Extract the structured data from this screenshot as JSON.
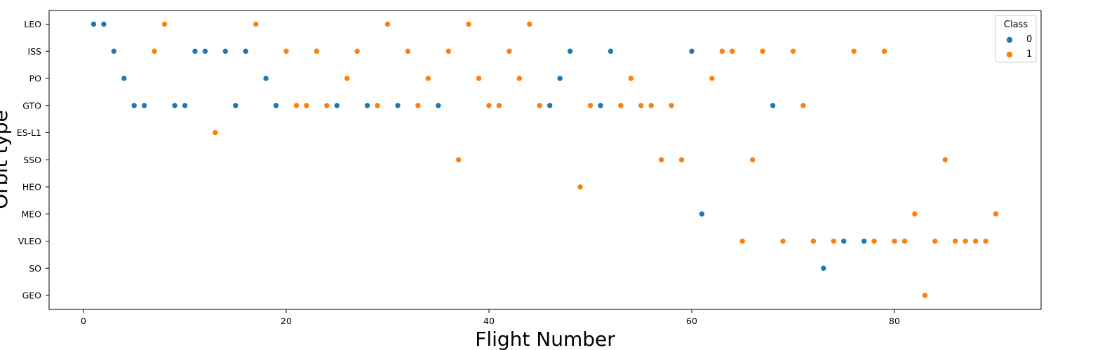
{
  "chart_data": {
    "type": "scatter",
    "xlabel": "Flight Number",
    "ylabel": "Orbit type",
    "xlim": [
      -3.5,
      94.5
    ],
    "xticks": [
      0,
      20,
      40,
      60,
      80
    ],
    "categories": [
      "LEO",
      "ISS",
      "PO",
      "GTO",
      "ES-L1",
      "SSO",
      "HEO",
      "MEO",
      "VLEO",
      "SO",
      "GEO"
    ],
    "legend": {
      "title": "Class",
      "position": "top-right"
    },
    "grid": false,
    "series": [
      {
        "name": "0",
        "color": "#1f77b4",
        "points": [
          [
            1,
            "LEO"
          ],
          [
            2,
            "LEO"
          ],
          [
            3,
            "ISS"
          ],
          [
            11,
            "ISS"
          ],
          [
            12,
            "ISS"
          ],
          [
            14,
            "ISS"
          ],
          [
            16,
            "ISS"
          ],
          [
            48,
            "ISS"
          ],
          [
            52,
            "ISS"
          ],
          [
            60,
            "ISS"
          ],
          [
            4,
            "PO"
          ],
          [
            18,
            "PO"
          ],
          [
            47,
            "PO"
          ],
          [
            5,
            "GTO"
          ],
          [
            6,
            "GTO"
          ],
          [
            9,
            "GTO"
          ],
          [
            10,
            "GTO"
          ],
          [
            15,
            "GTO"
          ],
          [
            19,
            "GTO"
          ],
          [
            25,
            "GTO"
          ],
          [
            28,
            "GTO"
          ],
          [
            31,
            "GTO"
          ],
          [
            35,
            "GTO"
          ],
          [
            46,
            "GTO"
          ],
          [
            51,
            "GTO"
          ],
          [
            68,
            "GTO"
          ],
          [
            61,
            "MEO"
          ],
          [
            75,
            "VLEO"
          ],
          [
            77,
            "VLEO"
          ],
          [
            73,
            "SO"
          ]
        ]
      },
      {
        "name": "1",
        "color": "#ff7f0e",
        "points": [
          [
            8,
            "LEO"
          ],
          [
            17,
            "LEO"
          ],
          [
            30,
            "LEO"
          ],
          [
            38,
            "LEO"
          ],
          [
            44,
            "LEO"
          ],
          [
            7,
            "ISS"
          ],
          [
            20,
            "ISS"
          ],
          [
            23,
            "ISS"
          ],
          [
            27,
            "ISS"
          ],
          [
            32,
            "ISS"
          ],
          [
            36,
            "ISS"
          ],
          [
            42,
            "ISS"
          ],
          [
            63,
            "ISS"
          ],
          [
            64,
            "ISS"
          ],
          [
            67,
            "ISS"
          ],
          [
            70,
            "ISS"
          ],
          [
            76,
            "ISS"
          ],
          [
            79,
            "ISS"
          ],
          [
            26,
            "PO"
          ],
          [
            34,
            "PO"
          ],
          [
            39,
            "PO"
          ],
          [
            43,
            "PO"
          ],
          [
            54,
            "PO"
          ],
          [
            62,
            "PO"
          ],
          [
            21,
            "GTO"
          ],
          [
            22,
            "GTO"
          ],
          [
            24,
            "GTO"
          ],
          [
            29,
            "GTO"
          ],
          [
            33,
            "GTO"
          ],
          [
            40,
            "GTO"
          ],
          [
            41,
            "GTO"
          ],
          [
            45,
            "GTO"
          ],
          [
            50,
            "GTO"
          ],
          [
            53,
            "GTO"
          ],
          [
            55,
            "GTO"
          ],
          [
            56,
            "GTO"
          ],
          [
            58,
            "GTO"
          ],
          [
            71,
            "GTO"
          ],
          [
            13,
            "ES-L1"
          ],
          [
            37,
            "SSO"
          ],
          [
            57,
            "SSO"
          ],
          [
            59,
            "SSO"
          ],
          [
            66,
            "SSO"
          ],
          [
            85,
            "SSO"
          ],
          [
            49,
            "HEO"
          ],
          [
            82,
            "MEO"
          ],
          [
            90,
            "MEO"
          ],
          [
            65,
            "VLEO"
          ],
          [
            69,
            "VLEO"
          ],
          [
            72,
            "VLEO"
          ],
          [
            74,
            "VLEO"
          ],
          [
            78,
            "VLEO"
          ],
          [
            80,
            "VLEO"
          ],
          [
            81,
            "VLEO"
          ],
          [
            84,
            "VLEO"
          ],
          [
            86,
            "VLEO"
          ],
          [
            87,
            "VLEO"
          ],
          [
            88,
            "VLEO"
          ],
          [
            89,
            "VLEO"
          ],
          [
            83,
            "GEO"
          ]
        ]
      }
    ]
  }
}
